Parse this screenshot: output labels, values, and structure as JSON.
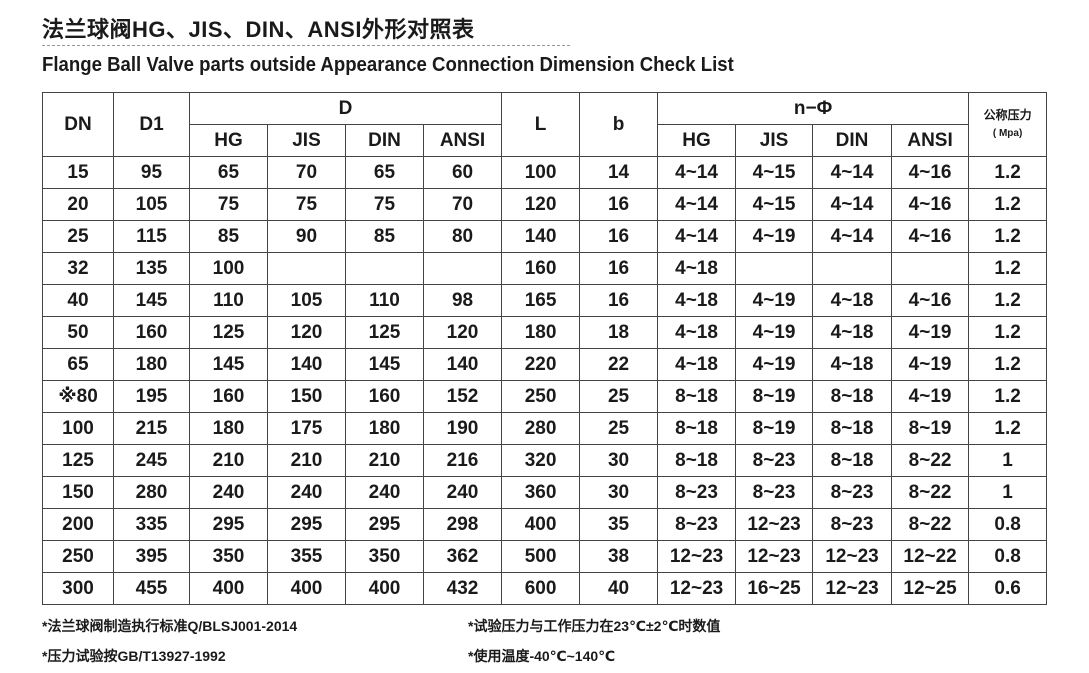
{
  "title": "法兰球阀HG、JIS、DIN、ANSI外形对照表",
  "subtitle": "Flange Ball Valve parts outside Appearance Connection Dimension Check List",
  "headers": {
    "dn": "DN",
    "d1": "D1",
    "d": "D",
    "l": "L",
    "b": "b",
    "n_phi": "n−Φ",
    "pressure": "公称压力",
    "pressure_unit": "( Mpa)",
    "sub": [
      "HG",
      "JIS",
      "DIN",
      "ANSI"
    ]
  },
  "rows": [
    [
      "15",
      "95",
      "65",
      "70",
      "65",
      "60",
      "100",
      "14",
      "4~14",
      "4~15",
      "4~14",
      "4~16",
      "1.2"
    ],
    [
      "20",
      "105",
      "75",
      "75",
      "75",
      "70",
      "120",
      "16",
      "4~14",
      "4~15",
      "4~14",
      "4~16",
      "1.2"
    ],
    [
      "25",
      "115",
      "85",
      "90",
      "85",
      "80",
      "140",
      "16",
      "4~14",
      "4~19",
      "4~14",
      "4~16",
      "1.2"
    ],
    [
      "32",
      "135",
      "100",
      "",
      "",
      "",
      "160",
      "16",
      "4~18",
      "",
      "",
      "",
      "1.2"
    ],
    [
      "40",
      "145",
      "110",
      "105",
      "110",
      "98",
      "165",
      "16",
      "4~18",
      "4~19",
      "4~18",
      "4~16",
      "1.2"
    ],
    [
      "50",
      "160",
      "125",
      "120",
      "125",
      "120",
      "180",
      "18",
      "4~18",
      "4~19",
      "4~18",
      "4~19",
      "1.2"
    ],
    [
      "65",
      "180",
      "145",
      "140",
      "145",
      "140",
      "220",
      "22",
      "4~18",
      "4~19",
      "4~18",
      "4~19",
      "1.2"
    ],
    [
      "※80",
      "195",
      "160",
      "150",
      "160",
      "152",
      "250",
      "25",
      "8~18",
      "8~19",
      "8~18",
      "4~19",
      "1.2"
    ],
    [
      "100",
      "215",
      "180",
      "175",
      "180",
      "190",
      "280",
      "25",
      "8~18",
      "8~19",
      "8~18",
      "8~19",
      "1.2"
    ],
    [
      "125",
      "245",
      "210",
      "210",
      "210",
      "216",
      "320",
      "30",
      "8~18",
      "8~23",
      "8~18",
      "8~22",
      "1"
    ],
    [
      "150",
      "280",
      "240",
      "240",
      "240",
      "240",
      "360",
      "30",
      "8~23",
      "8~23",
      "8~23",
      "8~22",
      "1"
    ],
    [
      "200",
      "335",
      "295",
      "295",
      "295",
      "298",
      "400",
      "35",
      "8~23",
      "12~23",
      "8~23",
      "8~22",
      "0.8"
    ],
    [
      "250",
      "395",
      "350",
      "355",
      "350",
      "362",
      "500",
      "38",
      "12~23",
      "12~23",
      "12~23",
      "12~22",
      "0.8"
    ],
    [
      "300",
      "455",
      "400",
      "400",
      "400",
      "432",
      "600",
      "40",
      "12~23",
      "16~25",
      "12~23",
      "12~25",
      "0.6"
    ]
  ],
  "notes": [
    "*法兰球阀制造执行标准Q/BLSJ001-2014",
    "*试验压力与工作压力在23℃±2℃时数值",
    "*压力试验按GB/T13927-1992",
    "*使用温度-40℃~140℃"
  ]
}
